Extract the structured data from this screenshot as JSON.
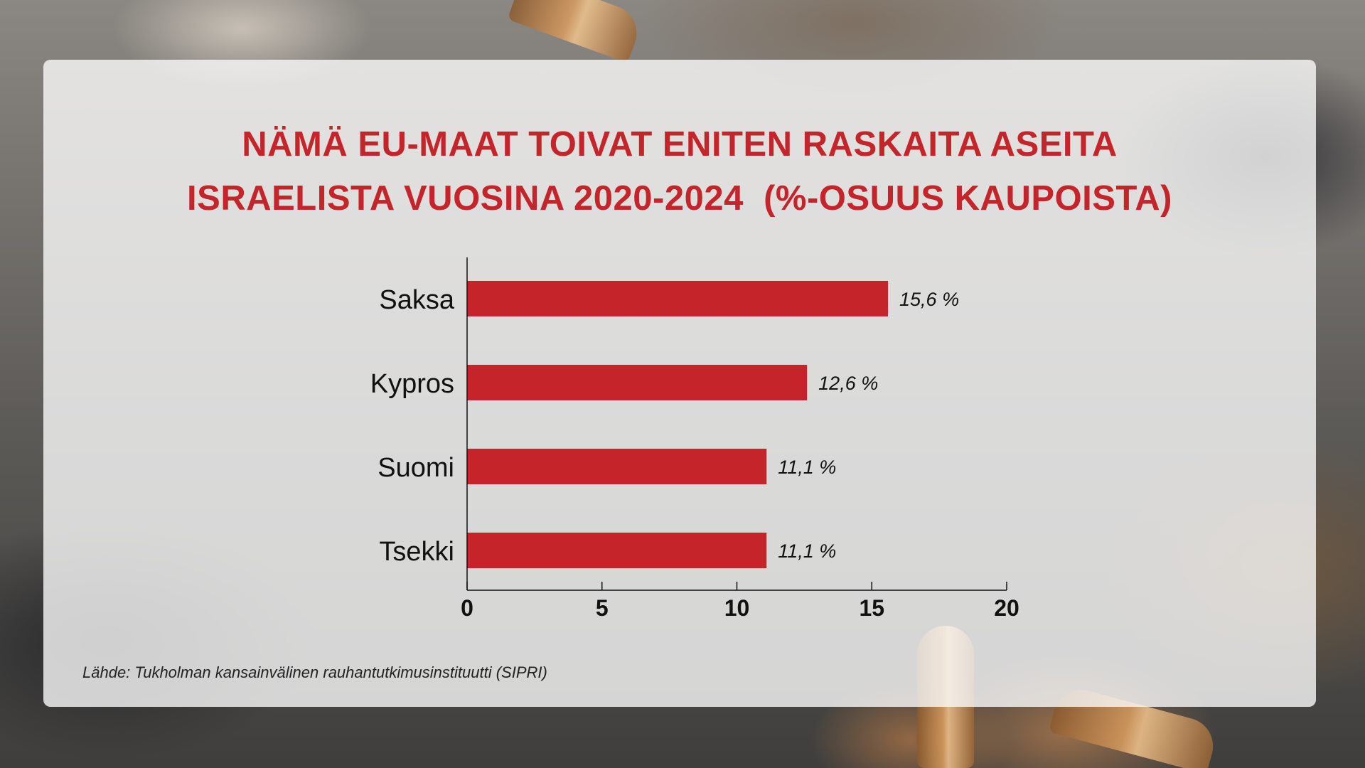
{
  "title_lines": [
    "NÄMÄ EU-MAAT TOIVAT ENITEN RASKAITA ASEITA",
    "ISRAELISTA VUOSINA 2020-2024  (%-OSUUS KAUPOISTA)"
  ],
  "source": "Lähde: Tukholman kansainvälinen rauhantutkimusinstituutti (SIPRI)",
  "colors": {
    "bar": "#c4242a",
    "title": "#c4242a",
    "axis": "#111111"
  },
  "chart_data": {
    "type": "bar",
    "orientation": "horizontal",
    "categories": [
      "Saksa",
      "Kypros",
      "Suomi",
      "Tsekki"
    ],
    "values": [
      15.6,
      12.6,
      11.1,
      11.1
    ],
    "value_labels": [
      "15,6 %",
      "12,6 %",
      "11,1 %",
      "11,1 %"
    ],
    "xlim": [
      0,
      20
    ],
    "xticks": [
      0,
      5,
      10,
      15,
      20
    ],
    "grid": false,
    "legend": "none"
  }
}
